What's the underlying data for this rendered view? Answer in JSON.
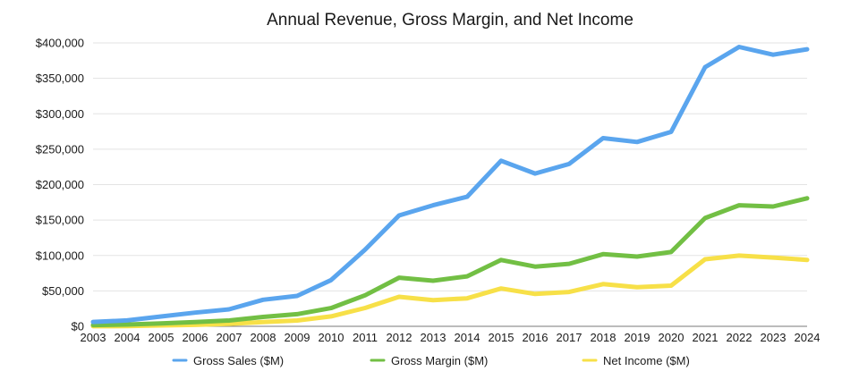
{
  "chart_data": {
    "type": "line",
    "title": "Annual Revenue, Gross Margin, and Net Income",
    "xlabel": "",
    "ylabel": "",
    "ylim": [
      0,
      400000
    ],
    "y_ticks": [
      0,
      50000,
      100000,
      150000,
      200000,
      250000,
      300000,
      350000,
      400000
    ],
    "y_tick_labels": [
      "$0",
      "$50,000",
      "$100,000",
      "$150,000",
      "$200,000",
      "$250,000",
      "$300,000",
      "$350,000",
      "$400,000"
    ],
    "grid": true,
    "legend_position": "bottom",
    "categories": [
      "2003",
      "2004",
      "2005",
      "2006",
      "2007",
      "2008",
      "2009",
      "2010",
      "2011",
      "2012",
      "2013",
      "2014",
      "2015",
      "2016",
      "2017",
      "2018",
      "2019",
      "2020",
      "2021",
      "2022",
      "2023",
      "2024"
    ],
    "series": [
      {
        "name": "Gross Sales ($M)",
        "color": "#5aa5ee",
        "values": [
          6200,
          8300,
          13900,
          19300,
          24000,
          37500,
          42900,
          65200,
          108200,
          156500,
          170900,
          182800,
          233700,
          215600,
          229200,
          265600,
          260200,
          274500,
          365800,
          394300,
          383300,
          391000
        ]
      },
      {
        "name": "Gross Margin ($M)",
        "color": "#72bf44",
        "values": [
          1800,
          2500,
          4000,
          6000,
          8200,
          13200,
          17200,
          25700,
          43800,
          68700,
          64300,
          70500,
          93600,
          84300,
          88200,
          101800,
          98400,
          104900,
          152800,
          170800,
          169100,
          180700
        ]
      },
      {
        "name": "Net Income ($M)",
        "color": "#f7e048",
        "values": [
          100,
          300,
          1300,
          2000,
          3500,
          6100,
          8200,
          14000,
          25900,
          41700,
          37000,
          39500,
          53400,
          45700,
          48400,
          59500,
          55300,
          57400,
          94700,
          99800,
          97000,
          93700
        ]
      }
    ]
  }
}
